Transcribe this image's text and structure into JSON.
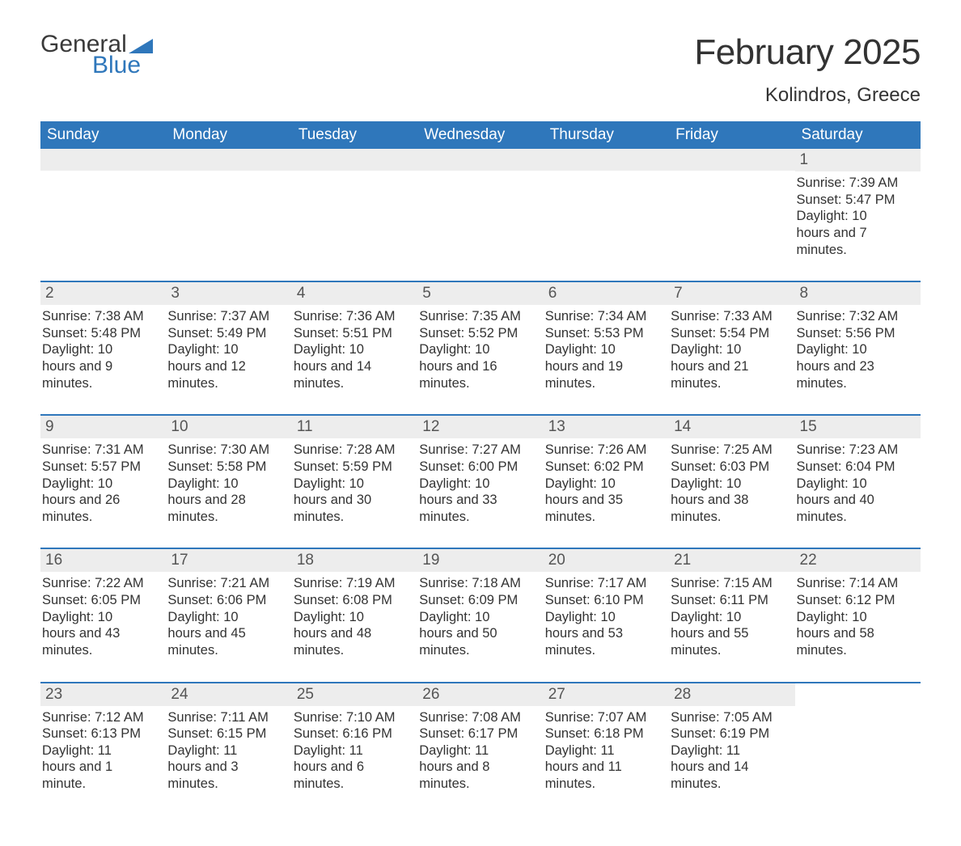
{
  "brand": {
    "word1": "General",
    "word2": "Blue",
    "accent_color": "#2f77bb"
  },
  "title": "February 2025",
  "location": "Kolindros, Greece",
  "colors": {
    "header_bg": "#2f77bb",
    "header_text": "#ffffff",
    "daynum_bg": "#ededed",
    "text": "#333333",
    "rule": "#2f77bb",
    "page_bg": "#ffffff"
  },
  "fonts": {
    "title_size_pt": 33,
    "location_size_pt": 18,
    "dow_size_pt": 14,
    "body_size_pt": 12
  },
  "layout": {
    "columns": 7,
    "rows": 5,
    "start_day_index": 6
  },
  "days_of_week": [
    "Sunday",
    "Monday",
    "Tuesday",
    "Wednesday",
    "Thursday",
    "Friday",
    "Saturday"
  ],
  "weeks": [
    [
      {
        "empty": true
      },
      {
        "empty": true
      },
      {
        "empty": true
      },
      {
        "empty": true
      },
      {
        "empty": true
      },
      {
        "empty": true
      },
      {
        "num": "1",
        "sunrise": "Sunrise: 7:39 AM",
        "sunset": "Sunset: 5:47 PM",
        "daylight": "Daylight: 10 hours and 7 minutes."
      }
    ],
    [
      {
        "num": "2",
        "sunrise": "Sunrise: 7:38 AM",
        "sunset": "Sunset: 5:48 PM",
        "daylight": "Daylight: 10 hours and 9 minutes."
      },
      {
        "num": "3",
        "sunrise": "Sunrise: 7:37 AM",
        "sunset": "Sunset: 5:49 PM",
        "daylight": "Daylight: 10 hours and 12 minutes."
      },
      {
        "num": "4",
        "sunrise": "Sunrise: 7:36 AM",
        "sunset": "Sunset: 5:51 PM",
        "daylight": "Daylight: 10 hours and 14 minutes."
      },
      {
        "num": "5",
        "sunrise": "Sunrise: 7:35 AM",
        "sunset": "Sunset: 5:52 PM",
        "daylight": "Daylight: 10 hours and 16 minutes."
      },
      {
        "num": "6",
        "sunrise": "Sunrise: 7:34 AM",
        "sunset": "Sunset: 5:53 PM",
        "daylight": "Daylight: 10 hours and 19 minutes."
      },
      {
        "num": "7",
        "sunrise": "Sunrise: 7:33 AM",
        "sunset": "Sunset: 5:54 PM",
        "daylight": "Daylight: 10 hours and 21 minutes."
      },
      {
        "num": "8",
        "sunrise": "Sunrise: 7:32 AM",
        "sunset": "Sunset: 5:56 PM",
        "daylight": "Daylight: 10 hours and 23 minutes."
      }
    ],
    [
      {
        "num": "9",
        "sunrise": "Sunrise: 7:31 AM",
        "sunset": "Sunset: 5:57 PM",
        "daylight": "Daylight: 10 hours and 26 minutes."
      },
      {
        "num": "10",
        "sunrise": "Sunrise: 7:30 AM",
        "sunset": "Sunset: 5:58 PM",
        "daylight": "Daylight: 10 hours and 28 minutes."
      },
      {
        "num": "11",
        "sunrise": "Sunrise: 7:28 AM",
        "sunset": "Sunset: 5:59 PM",
        "daylight": "Daylight: 10 hours and 30 minutes."
      },
      {
        "num": "12",
        "sunrise": "Sunrise: 7:27 AM",
        "sunset": "Sunset: 6:00 PM",
        "daylight": "Daylight: 10 hours and 33 minutes."
      },
      {
        "num": "13",
        "sunrise": "Sunrise: 7:26 AM",
        "sunset": "Sunset: 6:02 PM",
        "daylight": "Daylight: 10 hours and 35 minutes."
      },
      {
        "num": "14",
        "sunrise": "Sunrise: 7:25 AM",
        "sunset": "Sunset: 6:03 PM",
        "daylight": "Daylight: 10 hours and 38 minutes."
      },
      {
        "num": "15",
        "sunrise": "Sunrise: 7:23 AM",
        "sunset": "Sunset: 6:04 PM",
        "daylight": "Daylight: 10 hours and 40 minutes."
      }
    ],
    [
      {
        "num": "16",
        "sunrise": "Sunrise: 7:22 AM",
        "sunset": "Sunset: 6:05 PM",
        "daylight": "Daylight: 10 hours and 43 minutes."
      },
      {
        "num": "17",
        "sunrise": "Sunrise: 7:21 AM",
        "sunset": "Sunset: 6:06 PM",
        "daylight": "Daylight: 10 hours and 45 minutes."
      },
      {
        "num": "18",
        "sunrise": "Sunrise: 7:19 AM",
        "sunset": "Sunset: 6:08 PM",
        "daylight": "Daylight: 10 hours and 48 minutes."
      },
      {
        "num": "19",
        "sunrise": "Sunrise: 7:18 AM",
        "sunset": "Sunset: 6:09 PM",
        "daylight": "Daylight: 10 hours and 50 minutes."
      },
      {
        "num": "20",
        "sunrise": "Sunrise: 7:17 AM",
        "sunset": "Sunset: 6:10 PM",
        "daylight": "Daylight: 10 hours and 53 minutes."
      },
      {
        "num": "21",
        "sunrise": "Sunrise: 7:15 AM",
        "sunset": "Sunset: 6:11 PM",
        "daylight": "Daylight: 10 hours and 55 minutes."
      },
      {
        "num": "22",
        "sunrise": "Sunrise: 7:14 AM",
        "sunset": "Sunset: 6:12 PM",
        "daylight": "Daylight: 10 hours and 58 minutes."
      }
    ],
    [
      {
        "num": "23",
        "sunrise": "Sunrise: 7:12 AM",
        "sunset": "Sunset: 6:13 PM",
        "daylight": "Daylight: 11 hours and 1 minute."
      },
      {
        "num": "24",
        "sunrise": "Sunrise: 7:11 AM",
        "sunset": "Sunset: 6:15 PM",
        "daylight": "Daylight: 11 hours and 3 minutes."
      },
      {
        "num": "25",
        "sunrise": "Sunrise: 7:10 AM",
        "sunset": "Sunset: 6:16 PM",
        "daylight": "Daylight: 11 hours and 6 minutes."
      },
      {
        "num": "26",
        "sunrise": "Sunrise: 7:08 AM",
        "sunset": "Sunset: 6:17 PM",
        "daylight": "Daylight: 11 hours and 8 minutes."
      },
      {
        "num": "27",
        "sunrise": "Sunrise: 7:07 AM",
        "sunset": "Sunset: 6:18 PM",
        "daylight": "Daylight: 11 hours and 11 minutes."
      },
      {
        "num": "28",
        "sunrise": "Sunrise: 7:05 AM",
        "sunset": "Sunset: 6:19 PM",
        "daylight": "Daylight: 11 hours and 14 minutes."
      },
      {
        "empty": true,
        "nobar": true
      }
    ]
  ]
}
